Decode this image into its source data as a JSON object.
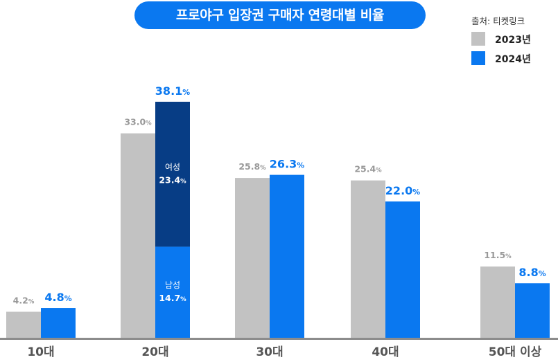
{
  "chart_data": {
    "type": "bar",
    "title": "프로야구 입장권 구매자 연령대별 비율",
    "source": "출처: 티켓링크",
    "categories": [
      "10대",
      "20대",
      "30대",
      "40대",
      "50대 이상"
    ],
    "series": [
      {
        "name": "2023년",
        "color": "#c2c2c2",
        "values": [
          4.2,
          33.0,
          25.8,
          25.4,
          11.5
        ],
        "labels": [
          "4.2",
          "33.0",
          "25.8",
          "25.4",
          "11.5"
        ]
      },
      {
        "name": "2024년",
        "color": "#0a78f0",
        "values": [
          4.8,
          38.1,
          26.3,
          22.0,
          8.8
        ],
        "labels": [
          "4.8",
          "38.1",
          "26.3",
          "22.0",
          "8.8"
        ]
      }
    ],
    "unit": "%",
    "breakdown": {
      "category": "20대",
      "series": "2024년",
      "segments": [
        {
          "name": "남성",
          "value": 14.7,
          "label": "14.7",
          "color": "#0a78f0"
        },
        {
          "name": "여성",
          "value": 23.4,
          "label": "23.4",
          "color": "#073d85"
        }
      ]
    },
    "ylim": [
      0,
      40
    ],
    "xlabel": "",
    "ylabel": "",
    "grid": false,
    "legend": "top-right"
  }
}
